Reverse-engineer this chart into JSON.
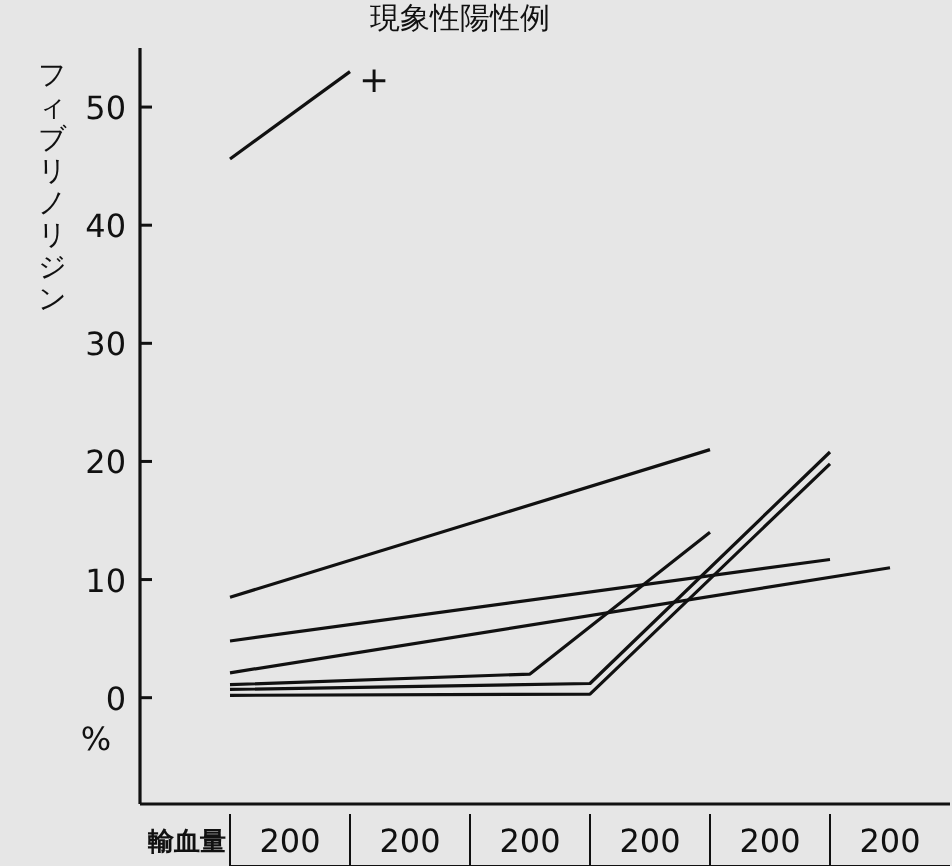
{
  "chart_data": {
    "type": "line",
    "title": "現象性陽性例",
    "xlabel": "輸血量",
    "ylabel": "フィブリノリジン",
    "categories": [
      null,
      "200",
      null,
      "200",
      null,
      "200",
      null,
      "200",
      null,
      "200",
      null,
      "200",
      null
    ],
    "ylim": [
      -9,
      55
    ],
    "yticks": [
      0,
      10,
      20,
      30,
      40,
      50
    ],
    "marker": "none",
    "line_style": "solid",
    "series": [
      {
        "color": "#111111",
        "values": [
          45.6,
          null,
          53,
          null,
          null,
          null,
          null,
          null,
          null,
          null,
          null,
          null,
          null
        ]
      },
      {
        "color": "#111111",
        "values": [
          8.5,
          null,
          null,
          null,
          null,
          null,
          null,
          null,
          21,
          null,
          null,
          null,
          null
        ]
      },
      {
        "color": "#111111",
        "values": [
          4.8,
          null,
          null,
          null,
          null,
          null,
          null,
          null,
          null,
          null,
          11.7,
          null,
          null
        ]
      },
      {
        "color": "#111111",
        "values": [
          2.1,
          null,
          null,
          null,
          null,
          null,
          null,
          null,
          null,
          null,
          null,
          11,
          null
        ]
      },
      {
        "color": "#111111",
        "values": [
          1.1,
          null,
          null,
          null,
          null,
          2,
          null,
          null,
          14,
          null,
          null,
          null,
          null
        ]
      },
      {
        "color": "#111111",
        "values": [
          0.7,
          null,
          null,
          null,
          null,
          null,
          1.2,
          null,
          null,
          null,
          20.8,
          null,
          null
        ]
      },
      {
        "color": "#111111",
        "values": [
          0.2,
          null,
          null,
          null,
          null,
          null,
          0.3,
          null,
          null,
          null,
          19.8,
          null,
          null
        ]
      }
    ],
    "annotations": [
      "+",
      "%"
    ]
  }
}
